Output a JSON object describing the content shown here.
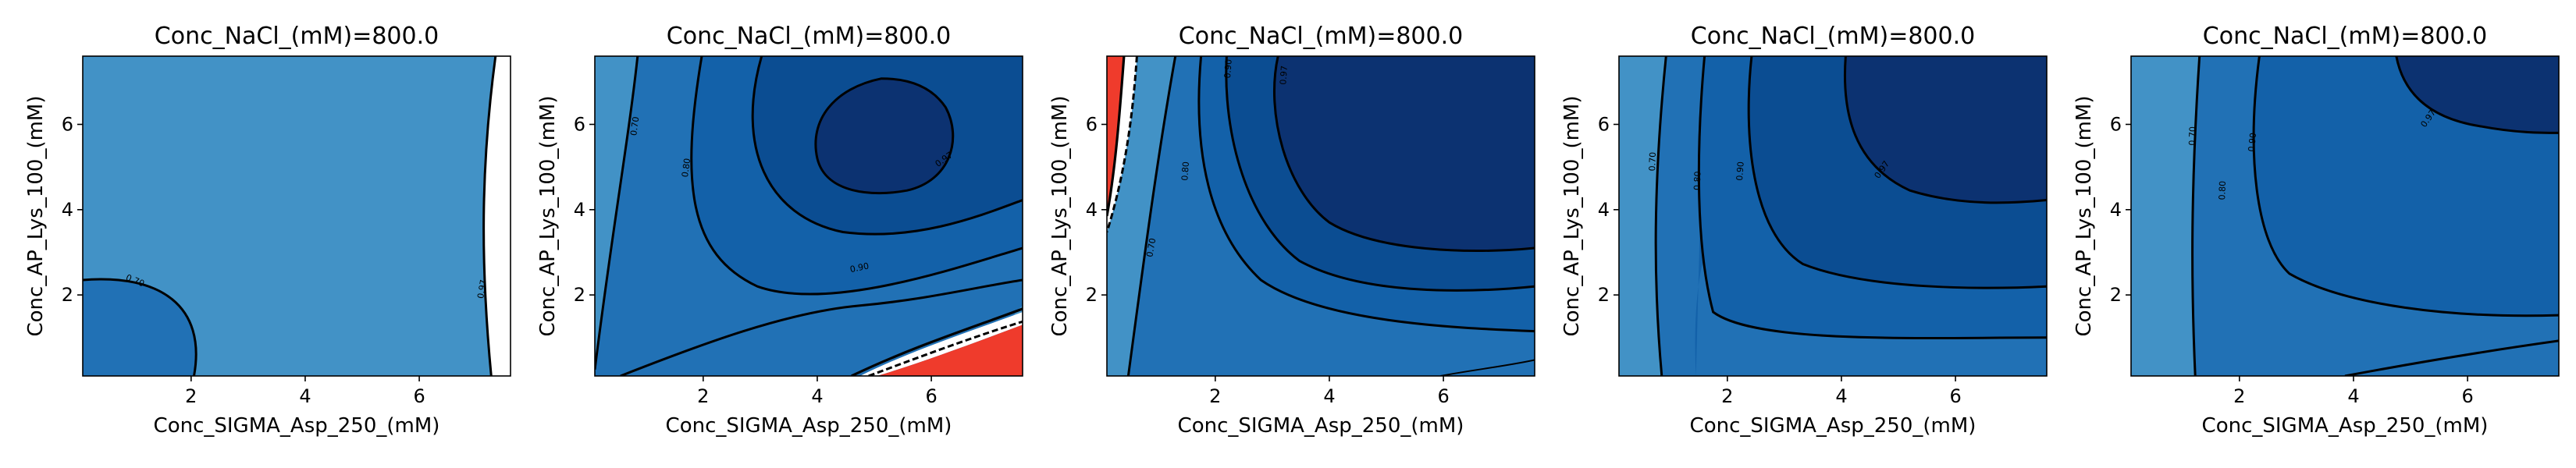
{
  "chart_data": [
    {
      "type": "contour",
      "title": "Conc_NaCl_(mM)=800.0",
      "xlabel": "Conc_SIGMA_Asp_250_(mM)",
      "ylabel": "Conc_AP_Lys_100_(mM)",
      "xlim": [
        0.1,
        7.6
      ],
      "ylim": [
        0.1,
        7.6
      ],
      "xticks": [
        2,
        4,
        6
      ],
      "yticks": [
        2,
        4,
        6
      ],
      "levels": [
        {
          "value": 0.7,
          "label": "0.70"
        },
        {
          "value": 0.97,
          "label": "0.97"
        }
      ],
      "regions": [
        {
          "fill": "#4292c6",
          "description_value": "0.70-0.97"
        },
        {
          "fill": "#2171b5",
          "description_value": "<0.70"
        },
        {
          "fill": "#ffffff",
          "description_value": ">0.97"
        }
      ]
    },
    {
      "type": "contour",
      "title": "Conc_NaCl_(mM)=800.0",
      "xlabel": "Conc_SIGMA_Asp_250_(mM)",
      "ylabel": "Conc_AP_Lys_100_(mM)",
      "xlim": [
        0.1,
        7.6
      ],
      "ylim": [
        0.1,
        7.6
      ],
      "xticks": [
        2,
        4,
        6
      ],
      "yticks": [
        2,
        4,
        6
      ],
      "levels": [
        {
          "value": 0.7,
          "label": "0.70"
        },
        {
          "value": 0.8,
          "label": "0.80"
        },
        {
          "value": 0.9,
          "label": "0.90"
        },
        {
          "value": 0.97,
          "label": "0.97"
        }
      ]
    },
    {
      "type": "contour",
      "title": "Conc_NaCl_(mM)=800.0",
      "xlabel": "Conc_SIGMA_Asp_250_(mM)",
      "ylabel": "Conc_AP_Lys_100_(mM)",
      "xlim": [
        0.1,
        7.6
      ],
      "ylim": [
        0.1,
        7.6
      ],
      "xticks": [
        2,
        4,
        6
      ],
      "yticks": [
        2,
        4,
        6
      ],
      "levels": [
        {
          "value": 0.7,
          "label": "0.70"
        },
        {
          "value": 0.8,
          "label": "0.80"
        },
        {
          "value": 0.9,
          "label": "0.90"
        },
        {
          "value": 0.97,
          "label": "0.97"
        }
      ]
    },
    {
      "type": "contour",
      "title": "Conc_NaCl_(mM)=800.0",
      "xlabel": "Conc_SIGMA_Asp_250_(mM)",
      "ylabel": "Conc_AP_Lys_100_(mM)",
      "xlim": [
        0.1,
        7.6
      ],
      "ylim": [
        0.1,
        7.6
      ],
      "xticks": [
        2,
        4,
        6
      ],
      "yticks": [
        2,
        4,
        6
      ],
      "levels": [
        {
          "value": 0.7,
          "label": "0.70"
        },
        {
          "value": 0.8,
          "label": "0.80"
        },
        {
          "value": 0.9,
          "label": "0.90"
        },
        {
          "value": 0.97,
          "label": "0.97"
        }
      ]
    },
    {
      "type": "contour",
      "title": "Conc_NaCl_(mM)=800.0",
      "xlabel": "Conc_SIGMA_Asp_250_(mM)",
      "ylabel": "Conc_AP_Lys_100_(mM)",
      "xlim": [
        0.1,
        7.6
      ],
      "ylim": [
        0.1,
        7.6
      ],
      "xticks": [
        2,
        4,
        6
      ],
      "yticks": [
        2,
        4,
        6
      ],
      "levels": [
        {
          "value": 0.7,
          "label": "0.70"
        },
        {
          "value": 0.8,
          "label": "0.80"
        },
        {
          "value": 0.9,
          "label": "0.90"
        },
        {
          "value": 0.97,
          "label": "0.97"
        }
      ]
    }
  ],
  "colors": {
    "lightest": "#4292c6",
    "light": "#2171b5",
    "mid": "#1361a9",
    "dark": "#0b4d92",
    "darkest": "#0c3271",
    "red": "#ef3b2c",
    "white": "#ffffff",
    "line": "#000000"
  }
}
